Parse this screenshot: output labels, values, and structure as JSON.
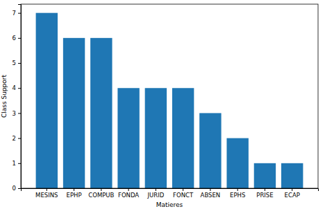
{
  "chart_data": {
    "type": "bar",
    "x_label": "Matieres",
    "y_label": "Class Support",
    "categories": [
      "MESINS",
      "EPHP",
      "COMPUB",
      "FONDA",
      "JURID",
      "FONCT",
      "ABSEN",
      "EPHS",
      "PRISE",
      "ECAP"
    ],
    "values": [
      7,
      6,
      6,
      4,
      4,
      4,
      3,
      2,
      1,
      1
    ],
    "color": "#1f77b4",
    "ylim": [
      0,
      7.35
    ],
    "yticks": [
      0,
      1,
      2,
      3,
      4,
      5,
      6,
      7
    ],
    "grid": false
  }
}
